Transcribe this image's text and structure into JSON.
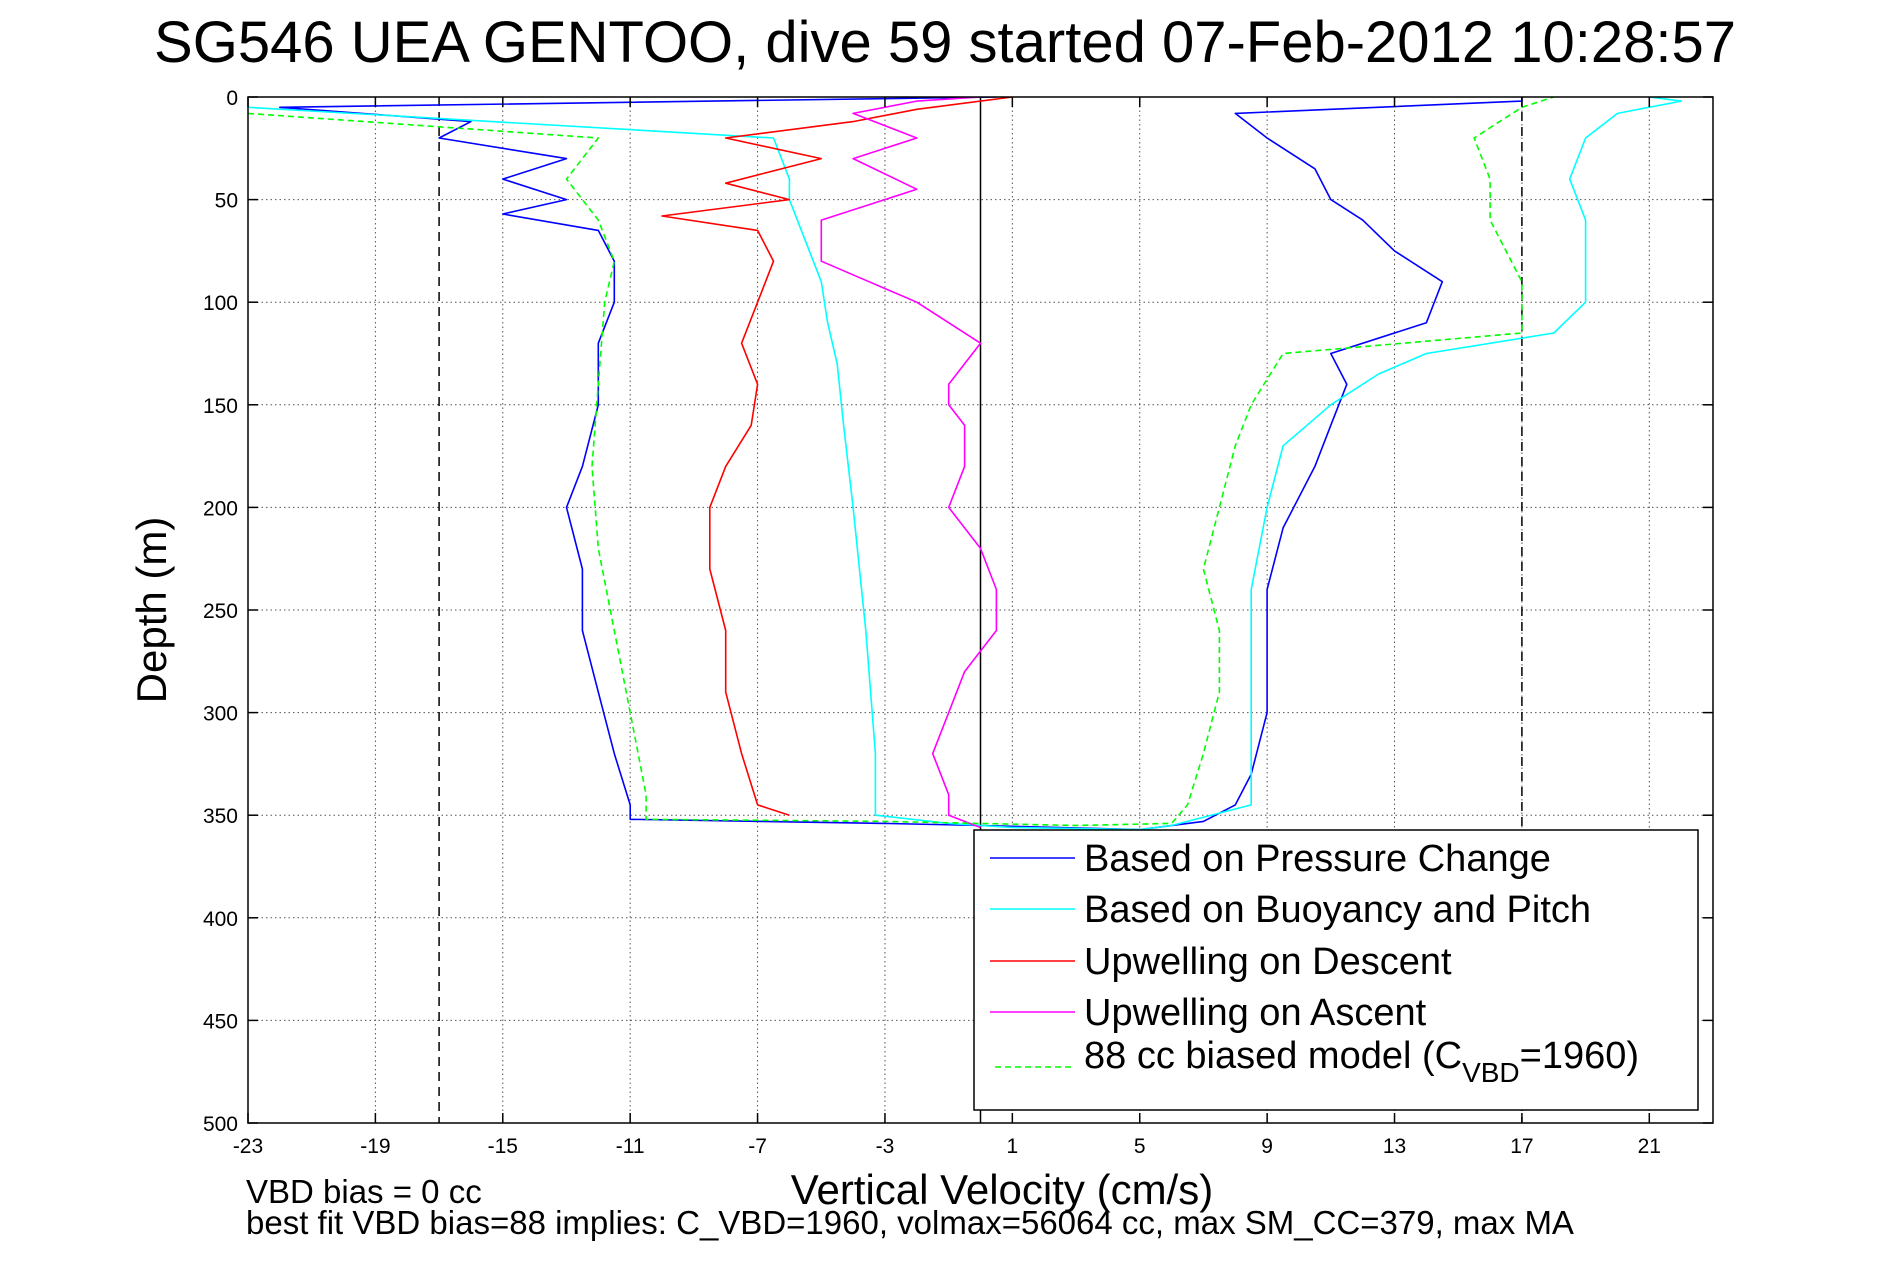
{
  "chart_data": {
    "type": "line",
    "title": "SG546 UEA GENTOO, dive 59 started 07-Feb-2012 10:28:57",
    "xlabel": "Vertical Velocity (cm/s)",
    "ylabel": "Depth (m)",
    "xlim": [
      -23,
      23
    ],
    "ylim": [
      500,
      0
    ],
    "y_reversed": true,
    "x_ticks": [
      -23,
      -19,
      -15,
      -11,
      -7,
      -3,
      1,
      5,
      9,
      13,
      17,
      21
    ],
    "y_ticks": [
      0,
      50,
      100,
      150,
      200,
      250,
      300,
      350,
      400,
      450,
      500
    ],
    "grid": true,
    "legend_position": "bottom-right",
    "reference_lines": {
      "solid_vertical_x": 0,
      "dashed_vertical_x": [
        -17,
        17
      ]
    },
    "series": [
      {
        "name": "Based on Pressure Change",
        "color": "#0000ff",
        "dash": "solid",
        "points": [
          [
            0.5,
            0
          ],
          [
            -22,
            5
          ],
          [
            -16,
            12
          ],
          [
            -17,
            20
          ],
          [
            -13,
            30
          ],
          [
            -15,
            40
          ],
          [
            -13,
            50
          ],
          [
            -15,
            57
          ],
          [
            -12,
            65
          ],
          [
            -11.5,
            80
          ],
          [
            -11.5,
            100
          ],
          [
            -12,
            120
          ],
          [
            -12,
            150
          ],
          [
            -12.5,
            180
          ],
          [
            -13,
            200
          ],
          [
            -12.5,
            230
          ],
          [
            -12.5,
            260
          ],
          [
            -12,
            290
          ],
          [
            -11.5,
            320
          ],
          [
            -11,
            345
          ],
          [
            -11,
            352
          ],
          [
            -3,
            354
          ],
          [
            0,
            355
          ],
          [
            5,
            357
          ],
          [
            7,
            353
          ],
          [
            8,
            345
          ],
          [
            8.5,
            330
          ],
          [
            9,
            300
          ],
          [
            9,
            270
          ],
          [
            9,
            240
          ],
          [
            9.5,
            210
          ],
          [
            10.5,
            180
          ],
          [
            11,
            160
          ],
          [
            11.5,
            140
          ],
          [
            11,
            125
          ],
          [
            14,
            110
          ],
          [
            14.5,
            90
          ],
          [
            13,
            75
          ],
          [
            12,
            60
          ],
          [
            11,
            50
          ],
          [
            10.5,
            35
          ],
          [
            9,
            20
          ],
          [
            8,
            8
          ],
          [
            17,
            2
          ],
          [
            17,
            0
          ]
        ]
      },
      {
        "name": "Based on Buoyancy and Pitch",
        "color": "#00ffff",
        "dash": "solid",
        "points": [
          [
            -23,
            5
          ],
          [
            -6.5,
            20
          ],
          [
            -6,
            40
          ],
          [
            -6,
            50
          ],
          [
            -5.5,
            70
          ],
          [
            -5,
            90
          ],
          [
            -4.8,
            110
          ],
          [
            -4.5,
            130
          ],
          [
            -4.3,
            160
          ],
          [
            -4,
            200
          ],
          [
            -3.6,
            260
          ],
          [
            -3.3,
            320
          ],
          [
            -3.3,
            350
          ],
          [
            -1,
            354
          ],
          [
            1,
            356
          ],
          [
            5,
            357
          ],
          [
            6,
            355
          ],
          [
            8.5,
            345
          ],
          [
            8.5,
            320
          ],
          [
            8.5,
            280
          ],
          [
            8.5,
            240
          ],
          [
            9,
            200
          ],
          [
            9.5,
            170
          ],
          [
            11,
            150
          ],
          [
            12.5,
            135
          ],
          [
            14,
            125
          ],
          [
            18,
            115
          ],
          [
            19,
            100
          ],
          [
            19,
            80
          ],
          [
            19,
            60
          ],
          [
            18.5,
            40
          ],
          [
            19,
            20
          ],
          [
            20,
            8
          ],
          [
            22,
            2
          ],
          [
            21,
            0
          ]
        ]
      },
      {
        "name": "Upwelling on Descent",
        "color": "#ff0000",
        "dash": "solid",
        "points": [
          [
            1,
            0
          ],
          [
            -2,
            6
          ],
          [
            -4,
            12
          ],
          [
            -8,
            20
          ],
          [
            -5,
            30
          ],
          [
            -8,
            42
          ],
          [
            -6,
            50
          ],
          [
            -10,
            58
          ],
          [
            -7,
            65
          ],
          [
            -6.5,
            80
          ],
          [
            -7,
            100
          ],
          [
            -7.5,
            120
          ],
          [
            -7,
            140
          ],
          [
            -7.2,
            160
          ],
          [
            -8,
            180
          ],
          [
            -8.5,
            200
          ],
          [
            -8.5,
            230
          ],
          [
            -8,
            260
          ],
          [
            -8,
            290
          ],
          [
            -7.5,
            320
          ],
          [
            -7,
            345
          ],
          [
            -6,
            350
          ]
        ]
      },
      {
        "name": "Upwelling on Ascent",
        "color": "#ff00ff",
        "dash": "solid",
        "points": [
          [
            0,
            356
          ],
          [
            -1,
            350
          ],
          [
            -1,
            340
          ],
          [
            -1.5,
            320
          ],
          [
            -1,
            300
          ],
          [
            -0.5,
            280
          ],
          [
            0.5,
            260
          ],
          [
            0.5,
            240
          ],
          [
            0,
            220
          ],
          [
            -1,
            200
          ],
          [
            -0.5,
            180
          ],
          [
            -0.5,
            160
          ],
          [
            -1,
            150
          ],
          [
            -1,
            140
          ],
          [
            -0.5,
            130
          ],
          [
            0,
            120
          ],
          [
            -2,
            100
          ],
          [
            -3.5,
            90
          ],
          [
            -5,
            80
          ],
          [
            -5,
            60
          ],
          [
            -2,
            45
          ],
          [
            -4,
            30
          ],
          [
            -2,
            20
          ],
          [
            -4,
            8
          ],
          [
            -2,
            2
          ],
          [
            0,
            0
          ]
        ]
      },
      {
        "name": "88 cc biased model (C_VBD=1960)",
        "color": "#00ff00",
        "dash": "dashed",
        "points": [
          [
            -23,
            8
          ],
          [
            -12,
            20
          ],
          [
            -13,
            40
          ],
          [
            -12,
            60
          ],
          [
            -11.5,
            80
          ],
          [
            -11.8,
            100
          ],
          [
            -12,
            140
          ],
          [
            -12.2,
            180
          ],
          [
            -12,
            220
          ],
          [
            -11.5,
            260
          ],
          [
            -11,
            300
          ],
          [
            -10.5,
            340
          ],
          [
            -10.5,
            352
          ],
          [
            -3,
            353
          ],
          [
            3,
            355
          ],
          [
            6,
            354
          ],
          [
            6.5,
            345
          ],
          [
            7,
            320
          ],
          [
            7.5,
            290
          ],
          [
            7.5,
            260
          ],
          [
            7,
            230
          ],
          [
            7.5,
            200
          ],
          [
            8,
            170
          ],
          [
            8.5,
            150
          ],
          [
            9.5,
            125
          ],
          [
            17,
            115
          ],
          [
            17,
            90
          ],
          [
            16,
            60
          ],
          [
            16,
            40
          ],
          [
            15.5,
            20
          ],
          [
            17,
            5
          ],
          [
            18,
            0
          ]
        ]
      }
    ]
  },
  "annotations": {
    "note_1": "VBD bias = 0 cc",
    "note_2": "best fit VBD bias=88 implies: C_VBD=1960, volmax=56064 cc, max SM_CC=379, max MA"
  },
  "legend": {
    "items": [
      {
        "label": "Based on Pressure Change",
        "color": "#0000ff",
        "dash": "solid"
      },
      {
        "label": "Based on Buoyancy and Pitch",
        "color": "#00ffff",
        "dash": "solid"
      },
      {
        "label": "Upwelling on Descent",
        "color": "#ff0000",
        "dash": "solid"
      },
      {
        "label": "Upwelling on Ascent",
        "color": "#ff00ff",
        "dash": "solid"
      },
      {
        "label": "88 cc biased model (C",
        "sub": "VBD",
        "label_tail": "=1960)",
        "color": "#00ff00",
        "dash": "dashed"
      }
    ]
  }
}
